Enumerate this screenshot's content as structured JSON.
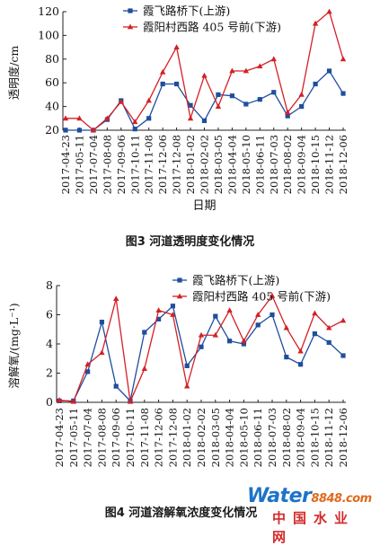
{
  "charts": [
    {
      "type": "line",
      "caption": "图3  河道透明度变化情况",
      "xlabel": "日期",
      "ylabel": "透明度/cm",
      "ylim": [
        20,
        120
      ],
      "yticks": [
        20,
        40,
        60,
        80,
        100,
        120
      ],
      "legend_position": "top",
      "categories": [
        "2017-04-23",
        "2017-05-11",
        "2017-07-04",
        "2017-08-08",
        "2017-09-06",
        "2017-10-11",
        "2017-11-08",
        "2017-12-06",
        "2017-12-08",
        "2018-01-02",
        "2018-02-02",
        "2018-03-05",
        "2018-04-04",
        "2018-05-10",
        "2018-06-11",
        "2018-07-03",
        "2018-08-02",
        "2018-09-04",
        "2018-10-15",
        "2018-11-12",
        "2018-12-06"
      ],
      "series": [
        {
          "name": "霞飞路桥下(上游)",
          "color": "#1f4e9c",
          "marker": "square",
          "values": [
            20,
            20,
            20,
            29,
            45,
            21,
            30,
            59,
            59,
            41,
            28,
            50,
            49,
            42,
            46,
            52,
            32,
            40,
            59,
            70,
            51
          ]
        },
        {
          "name": "霞阳村西路 405 号前(下游)",
          "color": "#d42026",
          "marker": "triangle",
          "values": [
            30,
            30,
            20,
            30,
            44,
            27,
            45,
            69,
            90,
            30,
            66,
            40,
            70,
            70,
            74,
            80,
            35,
            50,
            110,
            120,
            80
          ]
        }
      ]
    },
    {
      "type": "line",
      "caption": "图4  河道溶解氧浓度变化情况",
      "xlabel": "",
      "ylabel": "溶解氧/(mg·L⁻¹)",
      "ylim": [
        0,
        8
      ],
      "yticks": [
        0,
        2,
        4,
        6,
        8
      ],
      "legend_position": "top",
      "categories": [
        "2017-04-23",
        "2017-05-11",
        "2017-07-04",
        "2017-08-08",
        "2017-09-06",
        "2017-10-11",
        "2017-11-08",
        "2017-12-06",
        "2017-12-08",
        "2018-01-02",
        "2018-02-02",
        "2018-03-05",
        "2018-04-04",
        "2018-05-10",
        "2018-06-11",
        "2018-07-03",
        "2018-08-02",
        "2018-09-04",
        "2018-10-15",
        "2018-11-12",
        "2018-12-06"
      ],
      "series": [
        {
          "name": "霞飞路桥下(上游)",
          "color": "#1f4e9c",
          "marker": "square",
          "values": [
            0.1,
            0.1,
            2.1,
            5.5,
            1.1,
            0.1,
            4.8,
            5.7,
            6.6,
            2.5,
            3.8,
            5.9,
            4.2,
            4.0,
            5.3,
            6.0,
            3.1,
            2.6,
            4.7,
            4.1,
            3.2
          ]
        },
        {
          "name": "霞阳村西路 405 号前(下游)",
          "color": "#d42026",
          "marker": "triangle",
          "values": [
            0.15,
            0.05,
            2.6,
            3.4,
            7.1,
            0.05,
            2.3,
            6.3,
            6.0,
            1.1,
            4.6,
            4.6,
            6.3,
            4.2,
            6.0,
            7.3,
            5.1,
            3.5,
            6.1,
            5.1,
            5.6
          ]
        }
      ]
    }
  ],
  "watermark": {
    "brand": "Water",
    "number": "8848",
    "suffix": ".com",
    "subtitle": "中国水业网"
  }
}
